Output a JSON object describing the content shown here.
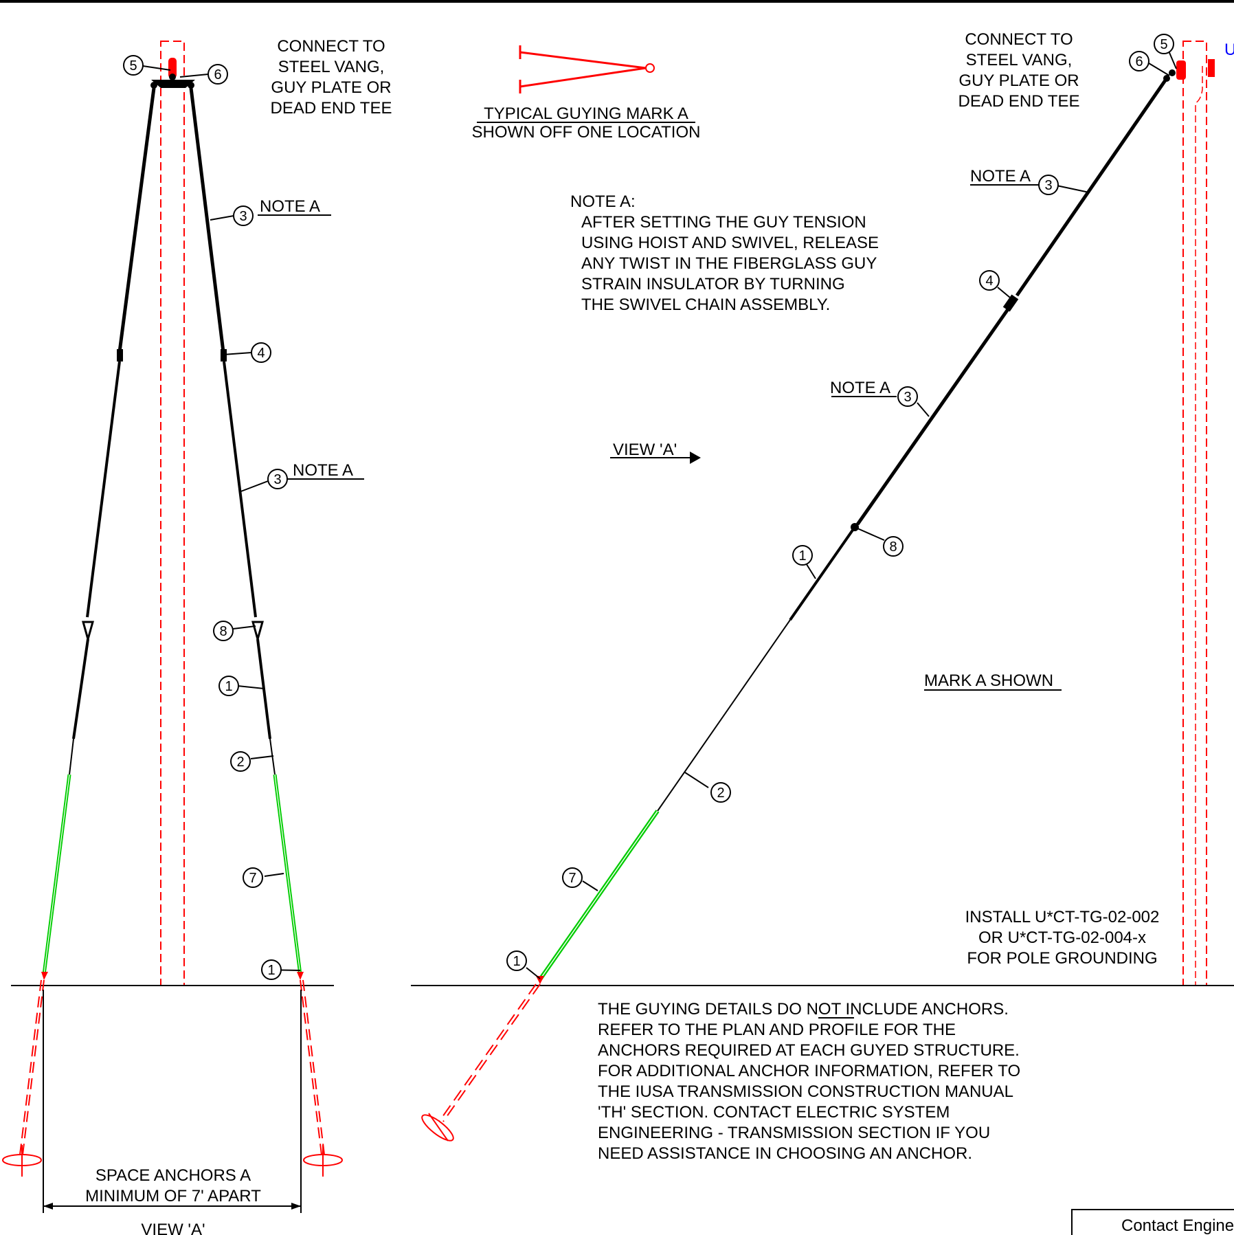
{
  "colors": {
    "ink": "#000000",
    "pole_and_anchor": "#ff0000",
    "fiberglass_insulator": "#00cc00",
    "partial_label": "#0000ff"
  },
  "left_view": {
    "connect_note": [
      "CONNECT TO",
      "STEEL VANG,",
      "GUY PLATE OR",
      "DEAD END TEE"
    ],
    "note_a_label": "NOTE A",
    "space_anchors": [
      "SPACE ANCHORS A",
      "MINIMUM OF 7' APART"
    ],
    "view_title": "VIEW 'A'"
  },
  "middle": {
    "typical_guying": [
      "TYPICAL GUYING MARK A",
      "SHOWN OFF ONE LOCATION"
    ],
    "note_a_title": "NOTE A:",
    "note_a_text": [
      "AFTER SETTING THE GUY TENSION",
      "USING HOIST AND SWIVEL, RELEASE",
      "ANY TWIST IN THE FIBERGLASS GUY",
      "STRAIN INSULATOR BY TURNING",
      "THE SWIVEL CHAIN ASSEMBLY."
    ],
    "view_arrow": "VIEW 'A'"
  },
  "right_view": {
    "connect_note": [
      "CONNECT TO",
      "STEEL VANG,",
      "GUY PLATE OR",
      "DEAD END TEE"
    ],
    "note_a_label": "NOTE A",
    "mark_shown": "MARK A SHOWN",
    "install_note": [
      "INSTALL U*CT-TG-02-002",
      "OR U*CT-TG-02-004-x",
      "FOR POLE GROUNDING"
    ],
    "partial_label": "U"
  },
  "anchor_note": [
    "THE GUYING DETAILS DO NOT INCLUDE ANCHORS.",
    "REFER TO THE PLAN AND PROFILE FOR THE",
    "ANCHORS REQUIRED AT EACH GUYED STRUCTURE.",
    "FOR ADDITIONAL ANCHOR INFORMATION, REFER TO",
    "THE IUSA TRANSMISSION CONSTRUCTION MANUAL",
    "'TH' SECTION.  CONTACT ELECTRIC SYSTEM",
    "ENGINEERING - TRANSMISSION SECTION IF YOU",
    "NEED ASSISTANCE IN CHOOSING AN ANCHOR."
  ],
  "contact_box": "Contact Engine",
  "callouts": {
    "c1": "1",
    "c2": "2",
    "c3": "3",
    "c4": "4",
    "c5": "5",
    "c6": "6",
    "c7": "7",
    "c8": "8"
  }
}
